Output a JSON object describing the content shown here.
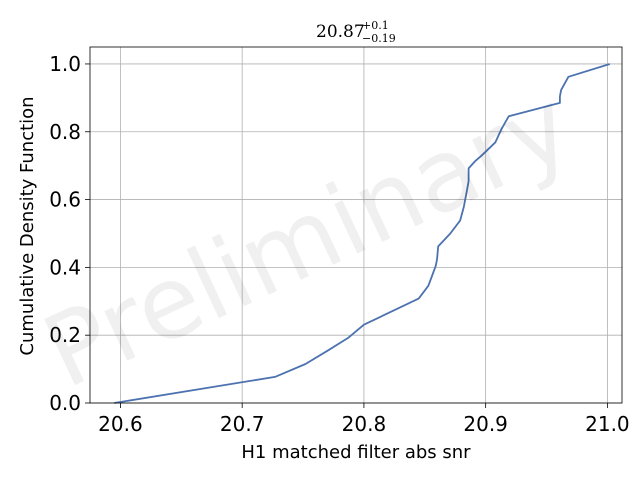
{
  "chart_data": {
    "type": "line",
    "title": {
      "main": "20.87",
      "sup": "+0.1",
      "sub": "−0.19"
    },
    "xlabel": "H1 matched filter abs snr",
    "ylabel": "Cumulative Density Function",
    "xlim": [
      20.575,
      21.012
    ],
    "ylim": [
      0.0,
      1.05
    ],
    "xticks": [
      20.6,
      20.7,
      20.8,
      20.9,
      21.0
    ],
    "xtick_labels": [
      "20.6",
      "20.7",
      "20.8",
      "20.9",
      "21.0"
    ],
    "yticks": [
      0.0,
      0.2,
      0.4,
      0.6,
      0.8,
      1.0
    ],
    "ytick_labels": [
      "0.0",
      "0.2",
      "0.4",
      "0.6",
      "0.8",
      "1.0"
    ],
    "grid": true,
    "line_color": "#4c72b0",
    "watermark": "Preliminary",
    "series": [
      {
        "x": [
          20.595,
          20.727,
          20.752,
          20.77,
          20.787,
          20.8,
          20.845,
          20.853,
          20.857,
          20.859,
          20.86,
          20.861,
          20.866,
          20.871,
          20.879,
          20.882,
          20.884,
          20.886,
          20.886,
          20.891,
          20.897,
          20.908,
          20.913,
          20.919,
          20.961,
          20.961,
          20.962,
          20.968,
          21.002
        ],
        "y": [
          0.0,
          0.077,
          0.115,
          0.154,
          0.192,
          0.231,
          0.308,
          0.346,
          0.385,
          0.404,
          0.423,
          0.462,
          0.481,
          0.5,
          0.538,
          0.577,
          0.615,
          0.654,
          0.692,
          0.712,
          0.731,
          0.769,
          0.808,
          0.846,
          0.885,
          0.904,
          0.923,
          0.962,
          1.0
        ]
      }
    ]
  }
}
